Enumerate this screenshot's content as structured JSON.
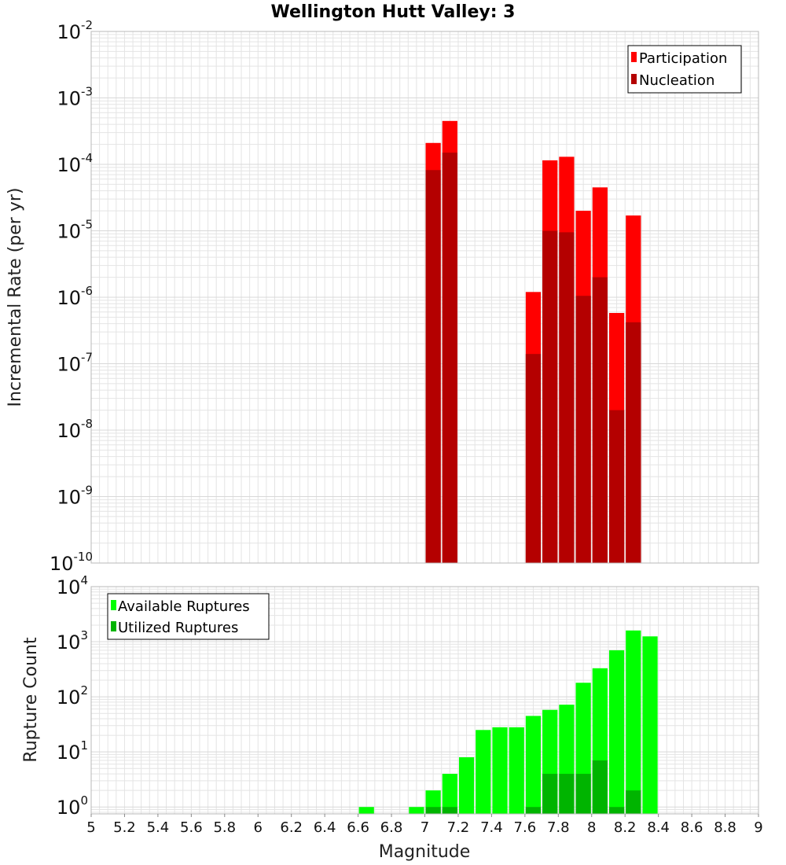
{
  "colors": {
    "participation": "#ff0000",
    "nucleation": "#b40000",
    "available": "#00ff00",
    "utilized": "#00b400",
    "grid": "#e4e4e4",
    "frame": "#b8b8b8"
  },
  "chart_data": [
    {
      "type": "bar",
      "title": "Wellington Hutt Valley: 3",
      "ylabel": "Incremental Rate (per yr)",
      "y_scale": "log",
      "ylim": [
        1e-10,
        0.01
      ],
      "y_tick_exponents": [
        "-10",
        "-9",
        "-8",
        "-7",
        "-6",
        "-5",
        "-4",
        "-3",
        "-2"
      ],
      "xlim": [
        5,
        9
      ],
      "bin_width": 0.1,
      "grid": true,
      "legend_position": "top-right",
      "series": [
        {
          "name": "Participation",
          "color_key": "participation",
          "x": [
            7.05,
            7.15,
            7.65,
            7.75,
            7.85,
            7.95,
            8.05,
            8.15,
            8.25
          ],
          "values": [
            0.00021,
            0.00045,
            1.2e-06,
            0.000115,
            0.00013,
            2e-05,
            4.5e-05,
            5.8e-07,
            1.7e-05
          ]
        },
        {
          "name": "Nucleation",
          "color_key": "nucleation",
          "x": [
            7.05,
            7.15,
            7.65,
            7.75,
            7.85,
            7.95,
            8.05,
            8.15,
            8.25
          ],
          "values": [
            8.2e-05,
            0.00015,
            1.4e-07,
            1e-05,
            9.5e-06,
            1.05e-06,
            2e-06,
            2e-08,
            4.2e-07
          ]
        }
      ]
    },
    {
      "type": "bar",
      "ylabel": "Rupture Count",
      "xlabel": "Magnitude",
      "y_scale": "log",
      "ylim": [
        0.75,
        10000
      ],
      "y_tick_exponents": [
        "0",
        "1",
        "2",
        "3",
        "4"
      ],
      "xlim": [
        5,
        9
      ],
      "x_ticks": [
        "5",
        "5.2",
        "5.4",
        "5.6",
        "5.8",
        "6",
        "6.2",
        "6.4",
        "6.6",
        "6.8",
        "7",
        "7.2",
        "7.4",
        "7.6",
        "7.8",
        "8",
        "8.2",
        "8.4",
        "8.6",
        "8.8",
        "9"
      ],
      "bin_width": 0.1,
      "grid": true,
      "legend_position": "top-left",
      "series": [
        {
          "name": "Available Ruptures",
          "color_key": "available",
          "x": [
            6.65,
            6.95,
            7.05,
            7.15,
            7.25,
            7.35,
            7.45,
            7.55,
            7.65,
            7.75,
            7.85,
            7.95,
            8.05,
            8.15,
            8.25,
            8.35
          ],
          "values": [
            1,
            1,
            2,
            4,
            8,
            25,
            28,
            28,
            45,
            58,
            72,
            180,
            330,
            700,
            1600,
            1250
          ]
        },
        {
          "name": "Utilized Ruptures",
          "color_key": "utilized",
          "x": [
            7.05,
            7.15,
            7.65,
            7.75,
            7.85,
            7.95,
            8.05,
            8.15,
            8.25
          ],
          "values": [
            1,
            1,
            1,
            4,
            4,
            4,
            7,
            1,
            2
          ]
        }
      ]
    }
  ]
}
